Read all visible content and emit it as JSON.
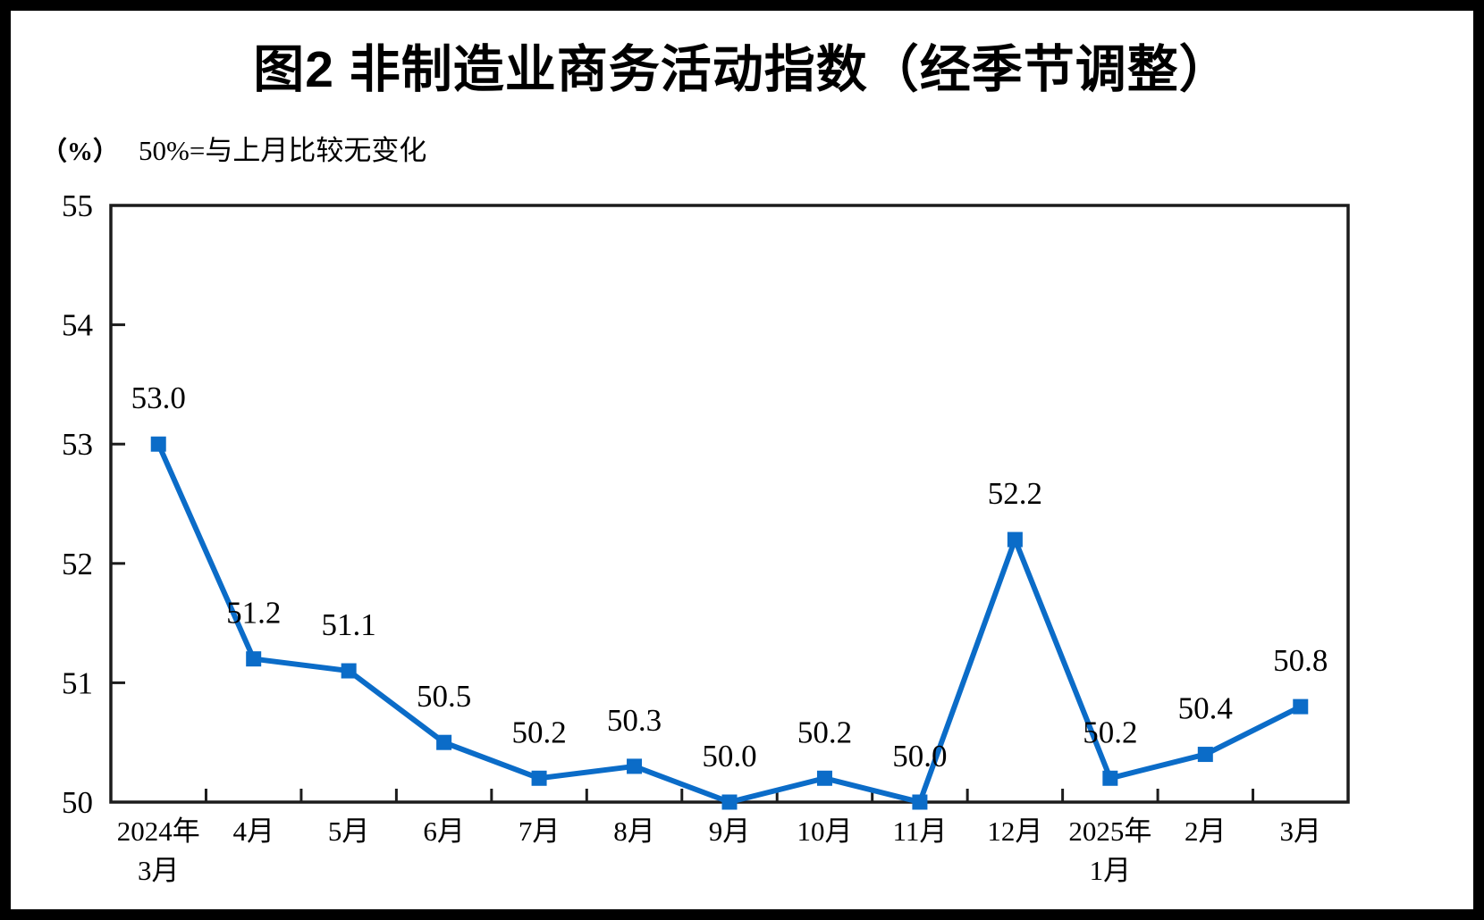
{
  "chart_data": {
    "type": "line",
    "title": "图2 非制造业商务活动指数（经季节调整）",
    "ylabel": "（%）",
    "note": "50%=与上月比较无变化",
    "categories": [
      [
        "2024年",
        "3月"
      ],
      [
        "4月"
      ],
      [
        "5月"
      ],
      [
        "6月"
      ],
      [
        "7月"
      ],
      [
        "8月"
      ],
      [
        "9月"
      ],
      [
        "10月"
      ],
      [
        "11月"
      ],
      [
        "12月"
      ],
      [
        "2025年",
        "1月"
      ],
      [
        "2月"
      ],
      [
        "3月"
      ]
    ],
    "values": [
      53.0,
      51.2,
      51.1,
      50.5,
      50.2,
      50.3,
      50.0,
      50.2,
      50.0,
      52.2,
      50.2,
      50.4,
      50.8
    ],
    "data_labels": [
      "53.0",
      "51.2",
      "51.1",
      "50.5",
      "50.2",
      "50.3",
      "50.0",
      "50.2",
      "50.0",
      "52.2",
      "50.2",
      "50.4",
      "50.8"
    ],
    "ylim": [
      50,
      55
    ],
    "yticks": [
      50,
      51,
      52,
      53,
      54,
      55
    ],
    "grid": false,
    "legend": "none",
    "marker": "square",
    "series_color": "#0b6cc8",
    "axis_color": "#1c1c1c",
    "text_color": "#000000",
    "background_color": "#ffffff",
    "frame_color": "#000000"
  }
}
